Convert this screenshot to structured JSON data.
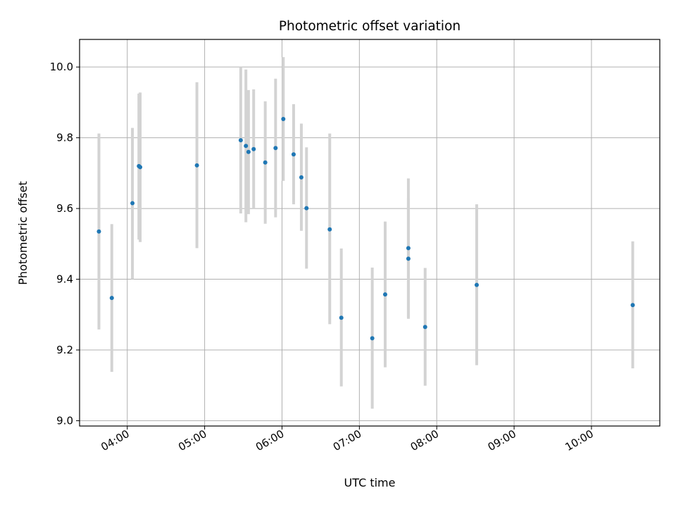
{
  "chart_data": {
    "type": "scatter",
    "title": "Photometric offset variation",
    "xlabel": "UTC time",
    "ylabel": "Photometric offset",
    "xlim": [
      "03:23",
      "10:53"
    ],
    "ylim": [
      8.985,
      10.078
    ],
    "x_ticks": [
      "04:00",
      "05:00",
      "06:00",
      "07:00",
      "08:00",
      "09:00",
      "10:00"
    ],
    "y_ticks": [
      "9.0",
      "9.2",
      "9.4",
      "9.6",
      "9.8",
      "10.0"
    ],
    "grid": true,
    "point_color": "#1f77b4",
    "errorbar_color": "#d3d3d3",
    "points": [
      {
        "time": "03:38",
        "y": 9.535,
        "low": 9.258,
        "high": 9.812
      },
      {
        "time": "03:48",
        "y": 9.347,
        "low": 9.138,
        "high": 9.556
      },
      {
        "time": "04:04",
        "y": 9.615,
        "low": 9.4,
        "high": 9.828
      },
      {
        "time": "04:09",
        "y": 9.72,
        "low": 9.512,
        "high": 9.925
      },
      {
        "time": "04:10",
        "y": 9.717,
        "low": 9.505,
        "high": 9.928
      },
      {
        "time": "04:54",
        "y": 9.722,
        "low": 9.488,
        "high": 9.957
      },
      {
        "time": "05:28",
        "y": 9.793,
        "low": 9.586,
        "high": 10.0
      },
      {
        "time": "05:32",
        "y": 9.777,
        "low": 9.561,
        "high": 9.993
      },
      {
        "time": "05:34",
        "y": 9.76,
        "low": 9.584,
        "high": 9.935
      },
      {
        "time": "05:38",
        "y": 9.768,
        "low": 9.6,
        "high": 9.937
      },
      {
        "time": "05:47",
        "y": 9.73,
        "low": 9.557,
        "high": 9.903
      },
      {
        "time": "05:55",
        "y": 9.771,
        "low": 9.575,
        "high": 9.967
      },
      {
        "time": "06:01",
        "y": 9.853,
        "low": 9.678,
        "high": 10.028
      },
      {
        "time": "06:09",
        "y": 9.753,
        "low": 9.612,
        "high": 9.895
      },
      {
        "time": "06:15",
        "y": 9.688,
        "low": 9.537,
        "high": 9.84
      },
      {
        "time": "06:19",
        "y": 9.601,
        "low": 9.43,
        "high": 9.773
      },
      {
        "time": "06:37",
        "y": 9.541,
        "low": 9.273,
        "high": 9.812
      },
      {
        "time": "06:46",
        "y": 9.291,
        "low": 9.097,
        "high": 9.487
      },
      {
        "time": "07:10",
        "y": 9.233,
        "low": 9.034,
        "high": 9.433
      },
      {
        "time": "07:20",
        "y": 9.357,
        "low": 9.151,
        "high": 9.563
      },
      {
        "time": "07:38",
        "y": 9.458,
        "low": 9.288,
        "high": 9.629
      },
      {
        "time": "07:38",
        "y": 9.488,
        "low": 9.292,
        "high": 9.685
      },
      {
        "time": "07:51",
        "y": 9.265,
        "low": 9.099,
        "high": 9.432
      },
      {
        "time": "08:31",
        "y": 9.384,
        "low": 9.157,
        "high": 9.612
      },
      {
        "time": "10:32",
        "y": 9.327,
        "low": 9.148,
        "high": 9.507
      }
    ]
  }
}
